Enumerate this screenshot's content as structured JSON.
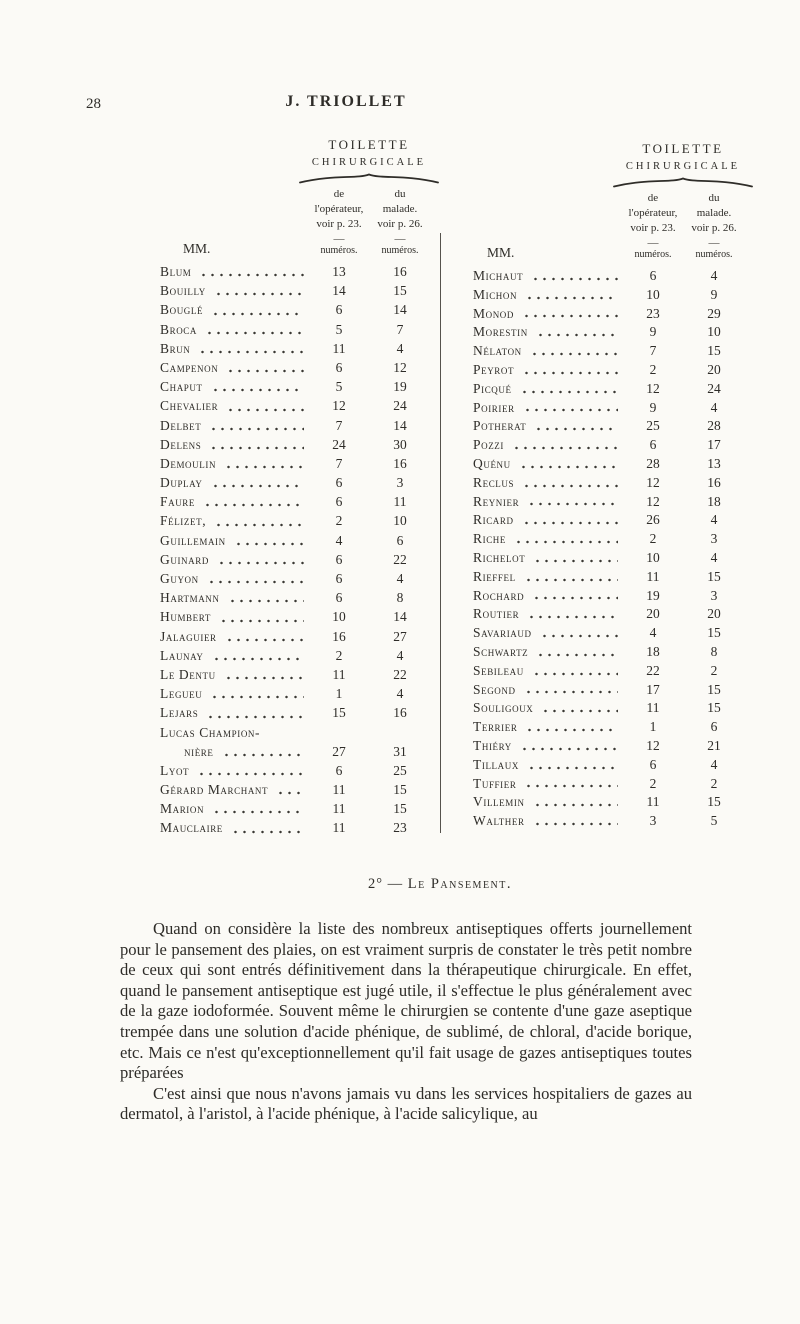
{
  "page": {
    "number": "28",
    "running_title": "J. TRIOLLET"
  },
  "tables": [
    {
      "header": {
        "title": "TOILETTE",
        "subtitle": "CHIRURGICALE",
        "col1": "de\nl'opérateur,\nvoir p. 23.\n—",
        "col2": "du\nmalade.\nvoir p. 26.\n—",
        "mm": "MM.",
        "numeros1": "numéros.",
        "numeros2": "numéros."
      },
      "rows": [
        {
          "name": "Blum",
          "n1": "13",
          "n2": "16"
        },
        {
          "name": "Bouilly",
          "n1": "14",
          "n2": "15"
        },
        {
          "name": "Bouglé",
          "n1": "6",
          "n2": "14"
        },
        {
          "name": "Broca",
          "n1": "5",
          "n2": "7"
        },
        {
          "name": "Brun",
          "n1": "11",
          "n2": "4"
        },
        {
          "name": "Campenon",
          "n1": "6",
          "n2": "12"
        },
        {
          "name": "Chaput",
          "n1": "5",
          "n2": "19"
        },
        {
          "name": "Chevalier",
          "n1": "12",
          "n2": "24"
        },
        {
          "name": "Delbet",
          "n1": "7",
          "n2": "14"
        },
        {
          "name": "Delens",
          "n1": "24",
          "n2": "30"
        },
        {
          "name": "Demoulin",
          "n1": "7",
          "n2": "16"
        },
        {
          "name": "Duplay",
          "n1": "6",
          "n2": "3"
        },
        {
          "name": "Faure",
          "n1": "6",
          "n2": "11"
        },
        {
          "name": "Félizet,",
          "n1": "2",
          "n2": "10"
        },
        {
          "name": "Guillemain",
          "n1": "4",
          "n2": "6"
        },
        {
          "name": "Guinard",
          "n1": "6",
          "n2": "22"
        },
        {
          "name": "Guyon",
          "n1": "6",
          "n2": "4"
        },
        {
          "name": "Hartmann",
          "n1": "6",
          "n2": "8"
        },
        {
          "name": "Humbert",
          "n1": "10",
          "n2": "14"
        },
        {
          "name": "Jalaguier",
          "n1": "16",
          "n2": "27"
        },
        {
          "name": "Launay",
          "n1": "2",
          "n2": "4"
        },
        {
          "name": "Le Dentu",
          "n1": "11",
          "n2": "22"
        },
        {
          "name": "Legueu",
          "n1": "1",
          "n2": "4"
        },
        {
          "name": "Lejars",
          "n1": "15",
          "n2": "16"
        },
        {
          "name": "Lucas Champion-",
          "name2": "nière",
          "n1": "27",
          "n2": "31"
        },
        {
          "name": "Lyot",
          "n1": "6",
          "n2": "25"
        },
        {
          "name": "Gérard Marchant",
          "n1": "11",
          "n2": "15"
        },
        {
          "name": "Marion",
          "n1": "11",
          "n2": "15"
        },
        {
          "name": "Mauclaire",
          "n1": "11",
          "n2": "23"
        }
      ]
    },
    {
      "header": {
        "title": "TOILETTE",
        "subtitle": "CHIRURGICALE",
        "col1": "de\nl'opérateur,\nvoir p. 23.\n—",
        "col2": "du\nmalade.\nvoir p. 26.\n—",
        "mm": "MM.",
        "numeros1": "numéros.",
        "numeros2": "numéros."
      },
      "rows": [
        {
          "name": "Michaut",
          "n1": "6",
          "n2": "4"
        },
        {
          "name": "Michon",
          "n1": "10",
          "n2": "9"
        },
        {
          "name": "Monod",
          "n1": "23",
          "n2": "29"
        },
        {
          "name": "Morestin",
          "n1": "9",
          "n2": "10"
        },
        {
          "name": "Nélaton",
          "n1": "7",
          "n2": "15"
        },
        {
          "name": "Peyrot",
          "n1": "2",
          "n2": "20"
        },
        {
          "name": "Picqué",
          "n1": "12",
          "n2": "24"
        },
        {
          "name": "Poirier",
          "n1": "9",
          "n2": "4"
        },
        {
          "name": "Potherat",
          "n1": "25",
          "n2": "28"
        },
        {
          "name": "Pozzi",
          "n1": "6",
          "n2": "17"
        },
        {
          "name": "Quénu",
          "n1": "28",
          "n2": "13"
        },
        {
          "name": "Reclus",
          "n1": "12",
          "n2": "16"
        },
        {
          "name": "Reynier",
          "n1": "12",
          "n2": "18"
        },
        {
          "name": "Ricard",
          "n1": "26",
          "n2": "4"
        },
        {
          "name": "Riche",
          "n1": "2",
          "n2": "3"
        },
        {
          "name": "Richelot",
          "n1": "10",
          "n2": "4"
        },
        {
          "name": "Rieffel",
          "n1": "11",
          "n2": "15"
        },
        {
          "name": "Rochard",
          "n1": "19",
          "n2": "3"
        },
        {
          "name": "Routier",
          "n1": "20",
          "n2": "20"
        },
        {
          "name": "Savariaud",
          "n1": "4",
          "n2": "15"
        },
        {
          "name": "Schwartz",
          "n1": "18",
          "n2": "8"
        },
        {
          "name": "Sebileau",
          "n1": "22",
          "n2": "2"
        },
        {
          "name": "Segond",
          "n1": "17",
          "n2": "15"
        },
        {
          "name": "Souligoux",
          "n1": "11",
          "n2": "15"
        },
        {
          "name": "Terrier",
          "n1": "1",
          "n2": "6"
        },
        {
          "name": "Thiéry",
          "n1": "12",
          "n2": "21"
        },
        {
          "name": "Tillaux",
          "n1": "6",
          "n2": "4"
        },
        {
          "name": "Tuffier",
          "n1": "2",
          "n2": "2"
        },
        {
          "name": "Villemin",
          "n1": "11",
          "n2": "15"
        },
        {
          "name": "Walther",
          "n1": "3",
          "n2": "5"
        }
      ]
    }
  ],
  "section": {
    "heading_num": "2°",
    "heading_sep": "—",
    "heading_title": "Le Pansement."
  },
  "paragraphs": [
    "Quand on considère la liste des nombreux antiseptiques offerts journellement pour le pansement des plaies, on est vraiment surpris de constater le très petit nombre de ceux qui sont entrés définitivement dans la thérapeutique chirurgicale. En effet, quand le pansement antiseptique est jugé utile, il s'effectue le plus généralement avec de la gaze iodoformée. Souvent même le chirurgien se contente d'une gaze aseptique trempée dans une solution d'acide phénique, de sublimé, de chloral, d'acide borique, etc. Mais ce n'est qu'exceptionnellement qu'il fait usage de gazes antiseptiques toutes préparées",
    "C'est ainsi que nous n'avons jamais vu dans les services hospitaliers de gazes au dermatol, à l'aristol, à l'acide phénique, à l'acide salicylique, au"
  ]
}
